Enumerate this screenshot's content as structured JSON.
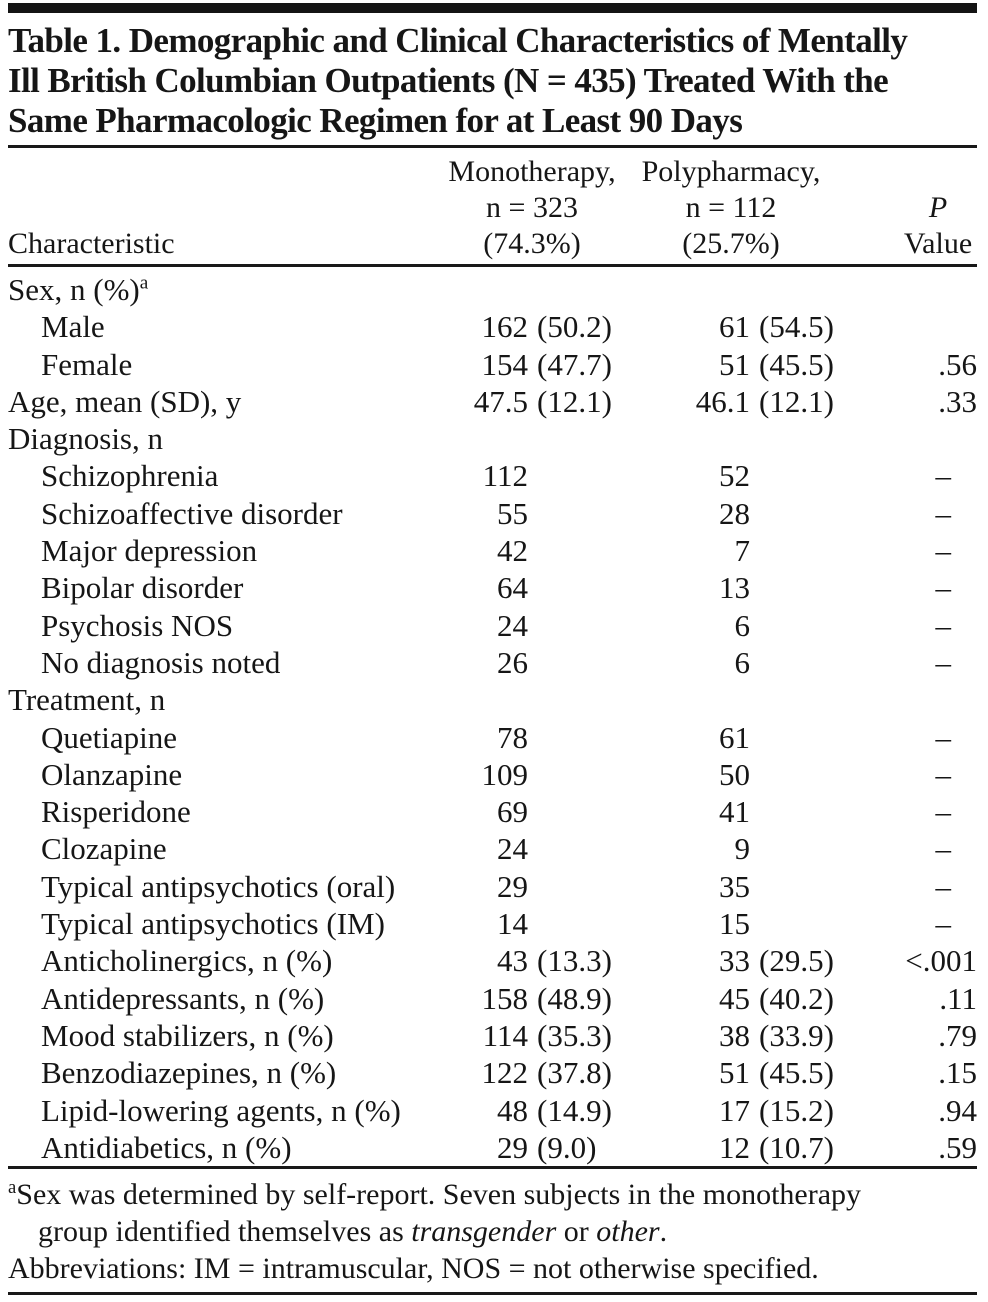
{
  "title": {
    "lines": [
      "Table 1. Demographic and Clinical Characteristics of Mentally",
      "Ill British Columbian Outpatients (N = 435) Treated With the",
      "Same Pharmacologic Regimen for at Least 90 Days"
    ]
  },
  "columns": {
    "characteristic": "Characteristic",
    "monotherapy": {
      "line1": "Monotherapy,",
      "line2": "n = 323",
      "line3": "(74.3%)"
    },
    "polypharmacy": {
      "line1": "Polypharmacy,",
      "line2": "n = 112",
      "line3": "(25.7%)"
    },
    "p": {
      "line1": "P",
      "line2": "Value"
    }
  },
  "rows": [
    {
      "label": "Sex, n (%)",
      "sup": "a",
      "indent": false,
      "mono": "",
      "mono_paren": "",
      "poly": "",
      "poly_paren": "",
      "p": ""
    },
    {
      "label": "Male",
      "sup": "",
      "indent": true,
      "mono": "162",
      "mono_paren": "(50.2)",
      "poly": "61",
      "poly_paren": "(54.5)",
      "p": ""
    },
    {
      "label": "Female",
      "sup": "",
      "indent": true,
      "mono": "154",
      "mono_paren": "(47.7)",
      "poly": "51",
      "poly_paren": "(45.5)",
      "p": ".56"
    },
    {
      "label": "Age, mean (SD), y",
      "sup": "",
      "indent": false,
      "mono": "47.5",
      "mono_paren": "(12.1)",
      "poly": "46.1",
      "poly_paren": "(12.1)",
      "p": ".33"
    },
    {
      "label": "Diagnosis, n",
      "sup": "",
      "indent": false,
      "mono": "",
      "mono_paren": "",
      "poly": "",
      "poly_paren": "",
      "p": ""
    },
    {
      "label": "Schizophrenia",
      "sup": "",
      "indent": true,
      "mono": "112",
      "mono_paren": "",
      "poly": "52",
      "poly_paren": "",
      "p": "–"
    },
    {
      "label": "Schizoaffective disorder",
      "sup": "",
      "indent": true,
      "mono": "55",
      "mono_paren": "",
      "poly": "28",
      "poly_paren": "",
      "p": "–"
    },
    {
      "label": "Major depression",
      "sup": "",
      "indent": true,
      "mono": "42",
      "mono_paren": "",
      "poly": "7",
      "poly_paren": "",
      "p": "–"
    },
    {
      "label": "Bipolar disorder",
      "sup": "",
      "indent": true,
      "mono": "64",
      "mono_paren": "",
      "poly": "13",
      "poly_paren": "",
      "p": "–"
    },
    {
      "label": "Psychosis NOS",
      "sup": "",
      "indent": true,
      "mono": "24",
      "mono_paren": "",
      "poly": "6",
      "poly_paren": "",
      "p": "–"
    },
    {
      "label": "No diagnosis noted",
      "sup": "",
      "indent": true,
      "mono": "26",
      "mono_paren": "",
      "poly": "6",
      "poly_paren": "",
      "p": "–"
    },
    {
      "label": "Treatment, n",
      "sup": "",
      "indent": false,
      "mono": "",
      "mono_paren": "",
      "poly": "",
      "poly_paren": "",
      "p": ""
    },
    {
      "label": "Quetiapine",
      "sup": "",
      "indent": true,
      "mono": "78",
      "mono_paren": "",
      "poly": "61",
      "poly_paren": "",
      "p": "–"
    },
    {
      "label": "Olanzapine",
      "sup": "",
      "indent": true,
      "mono": "109",
      "mono_paren": "",
      "poly": "50",
      "poly_paren": "",
      "p": "–"
    },
    {
      "label": "Risperidone",
      "sup": "",
      "indent": true,
      "mono": "69",
      "mono_paren": "",
      "poly": "41",
      "poly_paren": "",
      "p": "–"
    },
    {
      "label": "Clozapine",
      "sup": "",
      "indent": true,
      "mono": "24",
      "mono_paren": "",
      "poly": "9",
      "poly_paren": "",
      "p": "–"
    },
    {
      "label": "Typical antipsychotics (oral)",
      "sup": "",
      "indent": true,
      "mono": "29",
      "mono_paren": "",
      "poly": "35",
      "poly_paren": "",
      "p": "–"
    },
    {
      "label": "Typical antipsychotics (IM)",
      "sup": "",
      "indent": true,
      "mono": "14",
      "mono_paren": "",
      "poly": "15",
      "poly_paren": "",
      "p": "–"
    },
    {
      "label": "Anticholinergics, n (%)",
      "sup": "",
      "indent": true,
      "mono": "43",
      "mono_paren": "(13.3)",
      "poly": "33",
      "poly_paren": "(29.5)",
      "p": "<.001"
    },
    {
      "label": "Antidepressants, n (%)",
      "sup": "",
      "indent": true,
      "mono": "158",
      "mono_paren": "(48.9)",
      "poly": "45",
      "poly_paren": "(40.2)",
      "p": ".11"
    },
    {
      "label": "Mood stabilizers, n (%)",
      "sup": "",
      "indent": true,
      "mono": "114",
      "mono_paren": "(35.3)",
      "poly": "38",
      "poly_paren": "(33.9)",
      "p": ".79"
    },
    {
      "label": "Benzodiazepines, n (%)",
      "sup": "",
      "indent": true,
      "mono": "122",
      "mono_paren": "(37.8)",
      "poly": "51",
      "poly_paren": "(45.5)",
      "p": ".15"
    },
    {
      "label": "Lipid-lowering agents, n (%)",
      "sup": "",
      "indent": true,
      "mono": "48",
      "mono_paren": "(14.9)",
      "poly": "17",
      "poly_paren": "(15.2)",
      "p": ".94"
    },
    {
      "label": "Antidiabetics, n (%)",
      "sup": "",
      "indent": true,
      "mono": "29",
      "mono_paren": "(9.0)",
      "poly": "12",
      "poly_paren": "(10.7)",
      "p": ".59"
    }
  ],
  "footnotes": {
    "a_marker": "a",
    "a_line1": "Sex was determined by self-report. Seven subjects in the monotherapy",
    "a_line2": {
      "pre": "group identified themselves as ",
      "italic1": "transgender",
      "mid": " or ",
      "italic2": "other",
      "end": "."
    },
    "abbreviations": "Abbreviations: IM = intramuscular, NOS = not otherwise specified."
  },
  "colors": {
    "text": "#161616",
    "rule": "#181818",
    "background": "#ffffff"
  }
}
